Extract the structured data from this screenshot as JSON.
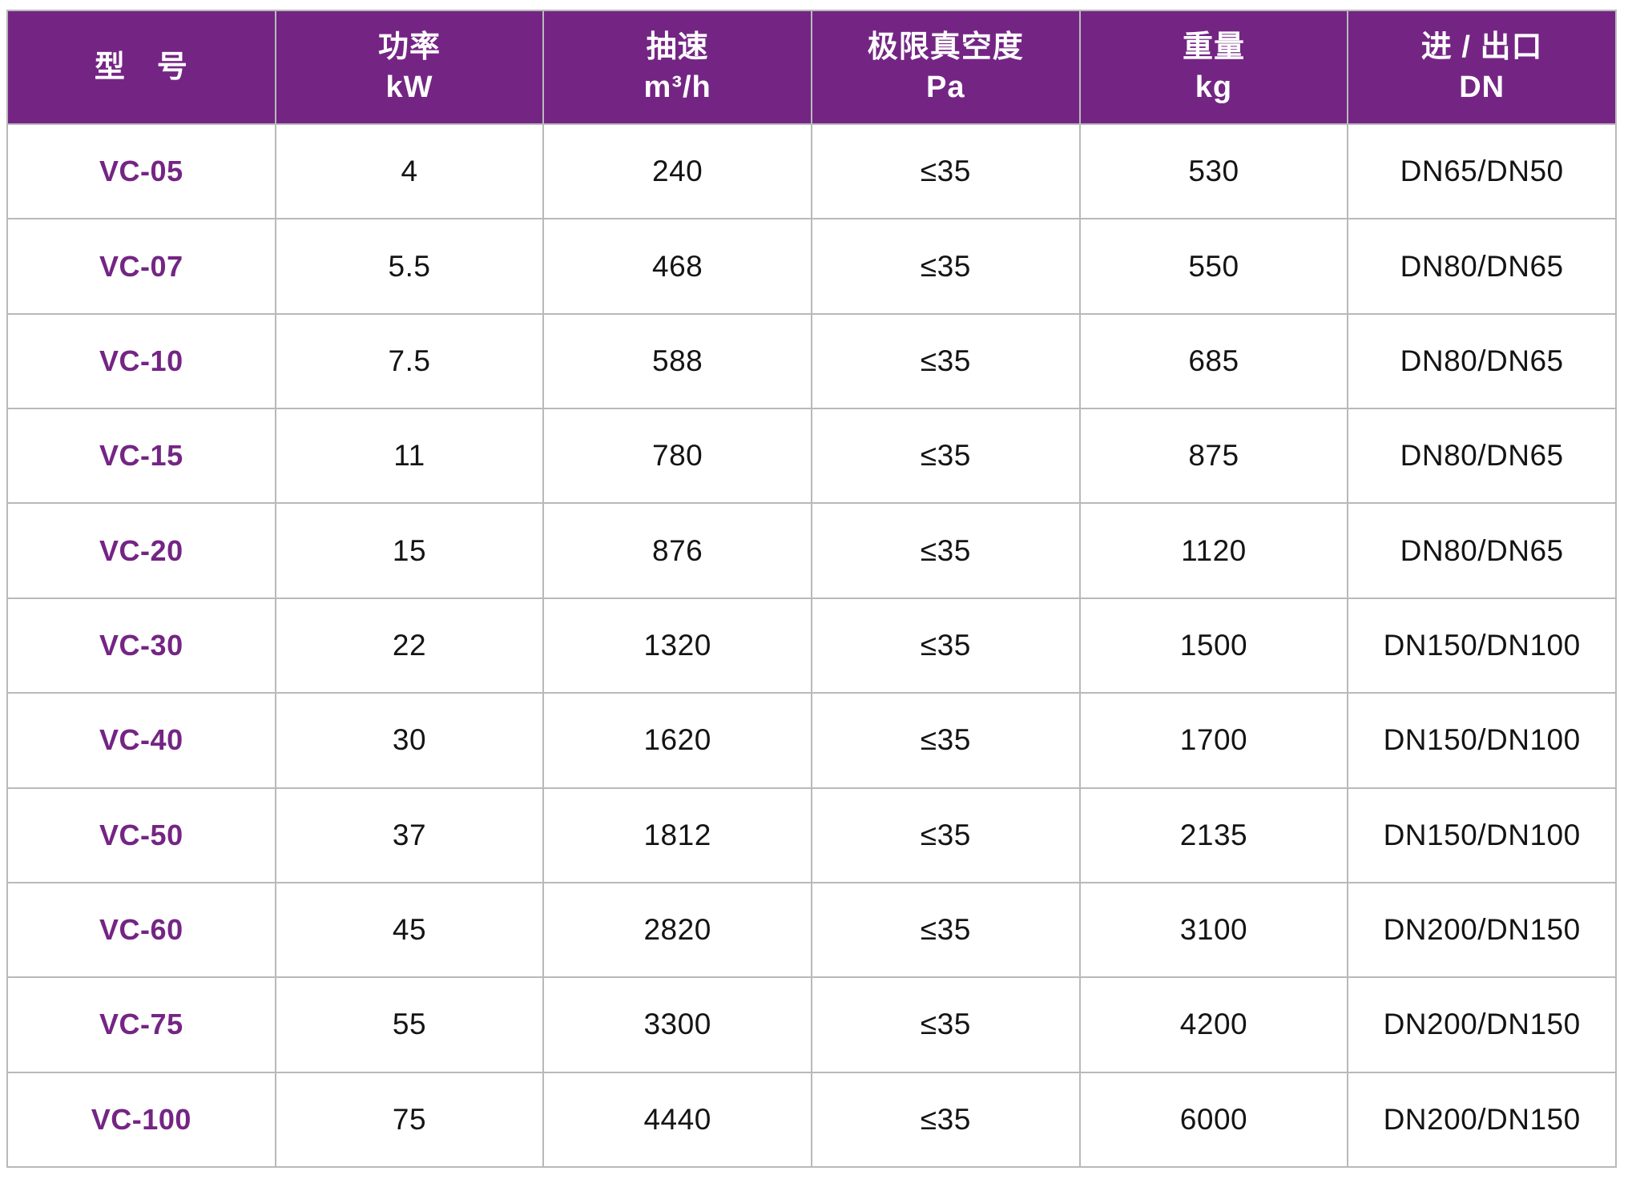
{
  "colors": {
    "page_background": "#ffffff",
    "header_background": "#742584",
    "header_text": "#ffffff",
    "model_text": "#742584",
    "cell_text": "#141414",
    "grid_line": "#b9b9bc"
  },
  "table": {
    "columns": [
      {
        "id": "model",
        "line1": "型　号",
        "line2": ""
      },
      {
        "id": "power",
        "line1": "功率",
        "line2": "kW"
      },
      {
        "id": "speed",
        "line1": "抽速",
        "line2": "m³/h"
      },
      {
        "id": "vacuum",
        "line1": "极限真空度",
        "line2": "Pa"
      },
      {
        "id": "weight",
        "line1": "重量",
        "line2": "kg"
      },
      {
        "id": "ports",
        "line1": "进 / 出口",
        "line2": "DN"
      }
    ],
    "rows": [
      {
        "model": "VC-05",
        "power": "4",
        "speed": "240",
        "vacuum": "≤35",
        "weight": "530",
        "ports": "DN65/DN50"
      },
      {
        "model": "VC-07",
        "power": "5.5",
        "speed": "468",
        "vacuum": "≤35",
        "weight": "550",
        "ports": "DN80/DN65"
      },
      {
        "model": "VC-10",
        "power": "7.5",
        "speed": "588",
        "vacuum": "≤35",
        "weight": "685",
        "ports": "DN80/DN65"
      },
      {
        "model": "VC-15",
        "power": "11",
        "speed": "780",
        "vacuum": "≤35",
        "weight": "875",
        "ports": "DN80/DN65"
      },
      {
        "model": "VC-20",
        "power": "15",
        "speed": "876",
        "vacuum": "≤35",
        "weight": "1120",
        "ports": "DN80/DN65"
      },
      {
        "model": "VC-30",
        "power": "22",
        "speed": "1320",
        "vacuum": "≤35",
        "weight": "1500",
        "ports": "DN150/DN100"
      },
      {
        "model": "VC-40",
        "power": "30",
        "speed": "1620",
        "vacuum": "≤35",
        "weight": "1700",
        "ports": "DN150/DN100"
      },
      {
        "model": "VC-50",
        "power": "37",
        "speed": "1812",
        "vacuum": "≤35",
        "weight": "2135",
        "ports": "DN150/DN100"
      },
      {
        "model": "VC-60",
        "power": "45",
        "speed": "2820",
        "vacuum": "≤35",
        "weight": "3100",
        "ports": "DN200/DN150"
      },
      {
        "model": "VC-75",
        "power": "55",
        "speed": "3300",
        "vacuum": "≤35",
        "weight": "4200",
        "ports": "DN200/DN150"
      },
      {
        "model": "VC-100",
        "power": "75",
        "speed": "4440",
        "vacuum": "≤35",
        "weight": "6000",
        "ports": "DN200/DN150"
      }
    ]
  }
}
